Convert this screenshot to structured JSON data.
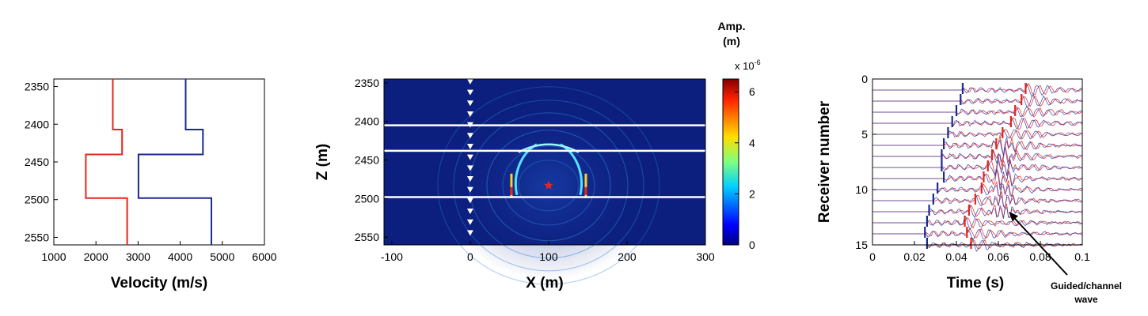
{
  "chart_data": [
    {
      "type": "line",
      "xlabel": "Velocity (m/s)",
      "ylabel": "",
      "xlim": [
        1000,
        6000
      ],
      "ylim": [
        2340,
        2560
      ],
      "y_inverted": true,
      "xticks": [
        "1000",
        "2000",
        "3000",
        "4000",
        "5000",
        "6000"
      ],
      "yticks": [
        "2350",
        "2400",
        "2450",
        "2500",
        "2550"
      ],
      "series": [
        {
          "color": "#e8251b",
          "points": [
            [
              2400,
              2340
            ],
            [
              2400,
              2407
            ],
            [
              2620,
              2407
            ],
            [
              2620,
              2440
            ],
            [
              1760,
              2440
            ],
            [
              1760,
              2498
            ],
            [
              2740,
              2498
            ],
            [
              2740,
              2560
            ]
          ]
        },
        {
          "color": "#1b2a8f",
          "points": [
            [
              4130,
              2340
            ],
            [
              4130,
              2407
            ],
            [
              4540,
              2407
            ],
            [
              4540,
              2440
            ],
            [
              3010,
              2440
            ],
            [
              3010,
              2498
            ],
            [
              4740,
              2498
            ],
            [
              4740,
              2560
            ]
          ]
        }
      ]
    },
    {
      "type": "heatmap",
      "xlabel": "X (m)",
      "ylabel": "Z (m)",
      "xlim": [
        -110,
        300
      ],
      "ylim": [
        2345,
        2560
      ],
      "y_inverted": true,
      "xticks": [
        "-100",
        "0",
        "100",
        "200",
        "300"
      ],
      "yticks": [
        "2350",
        "2400",
        "2450",
        "2500",
        "2550"
      ],
      "colorbar": {
        "title_line1": "Amp.",
        "title_line2": "(m)",
        "scale_base": "x 10",
        "scale_exp": "-6",
        "range": [
          0,
          6.5
        ],
        "ticks": [
          "0",
          "2",
          "4",
          "6"
        ],
        "colormap": "jet"
      },
      "layer_boundaries_z": [
        2405,
        2438,
        2498
      ],
      "receiver_x": 0,
      "receiver_z": [
        2348,
        2362,
        2376,
        2390,
        2404,
        2418,
        2432,
        2446,
        2460,
        2474,
        2488,
        2502,
        2516,
        2530,
        2544
      ],
      "source": {
        "x": 100,
        "z": 2483
      },
      "background_color": "#0c1f7e",
      "source_color": "#e8251b"
    },
    {
      "type": "line",
      "xlabel": "Time (s)",
      "ylabel": "Receiver number",
      "xlim": [
        0,
        0.1
      ],
      "ylim": [
        0,
        15
      ],
      "y_inverted": true,
      "xticks": [
        "0",
        "0.02",
        "0.04",
        "0.06",
        "0.08",
        "0.1"
      ],
      "yticks": [
        "0",
        "5",
        "10",
        "15"
      ],
      "traces": [
        1,
        15
      ],
      "p_picks": [
        0.043,
        0.042,
        0.04,
        0.038,
        0.036,
        0.034,
        0.033,
        0.033,
        0.034,
        0.031,
        0.029,
        0.027,
        0.026,
        0.025,
        0.026
      ],
      "s_picks": [
        0.073,
        0.071,
        0.068,
        0.066,
        0.062,
        0.059,
        0.057,
        0.055,
        0.053,
        0.052,
        0.049,
        0.046,
        0.044,
        0.045,
        0.047
      ],
      "annotation": {
        "line1": "Guided/channel",
        "line2": "wave",
        "arrow_to": {
          "x": 0.065,
          "y": 12
        }
      },
      "colors": {
        "trace_red": "#e8251b",
        "trace_blue": "#2b3cb0",
        "p_pick": "#1b2a8f",
        "s_pick": "#e8251b"
      }
    }
  ]
}
